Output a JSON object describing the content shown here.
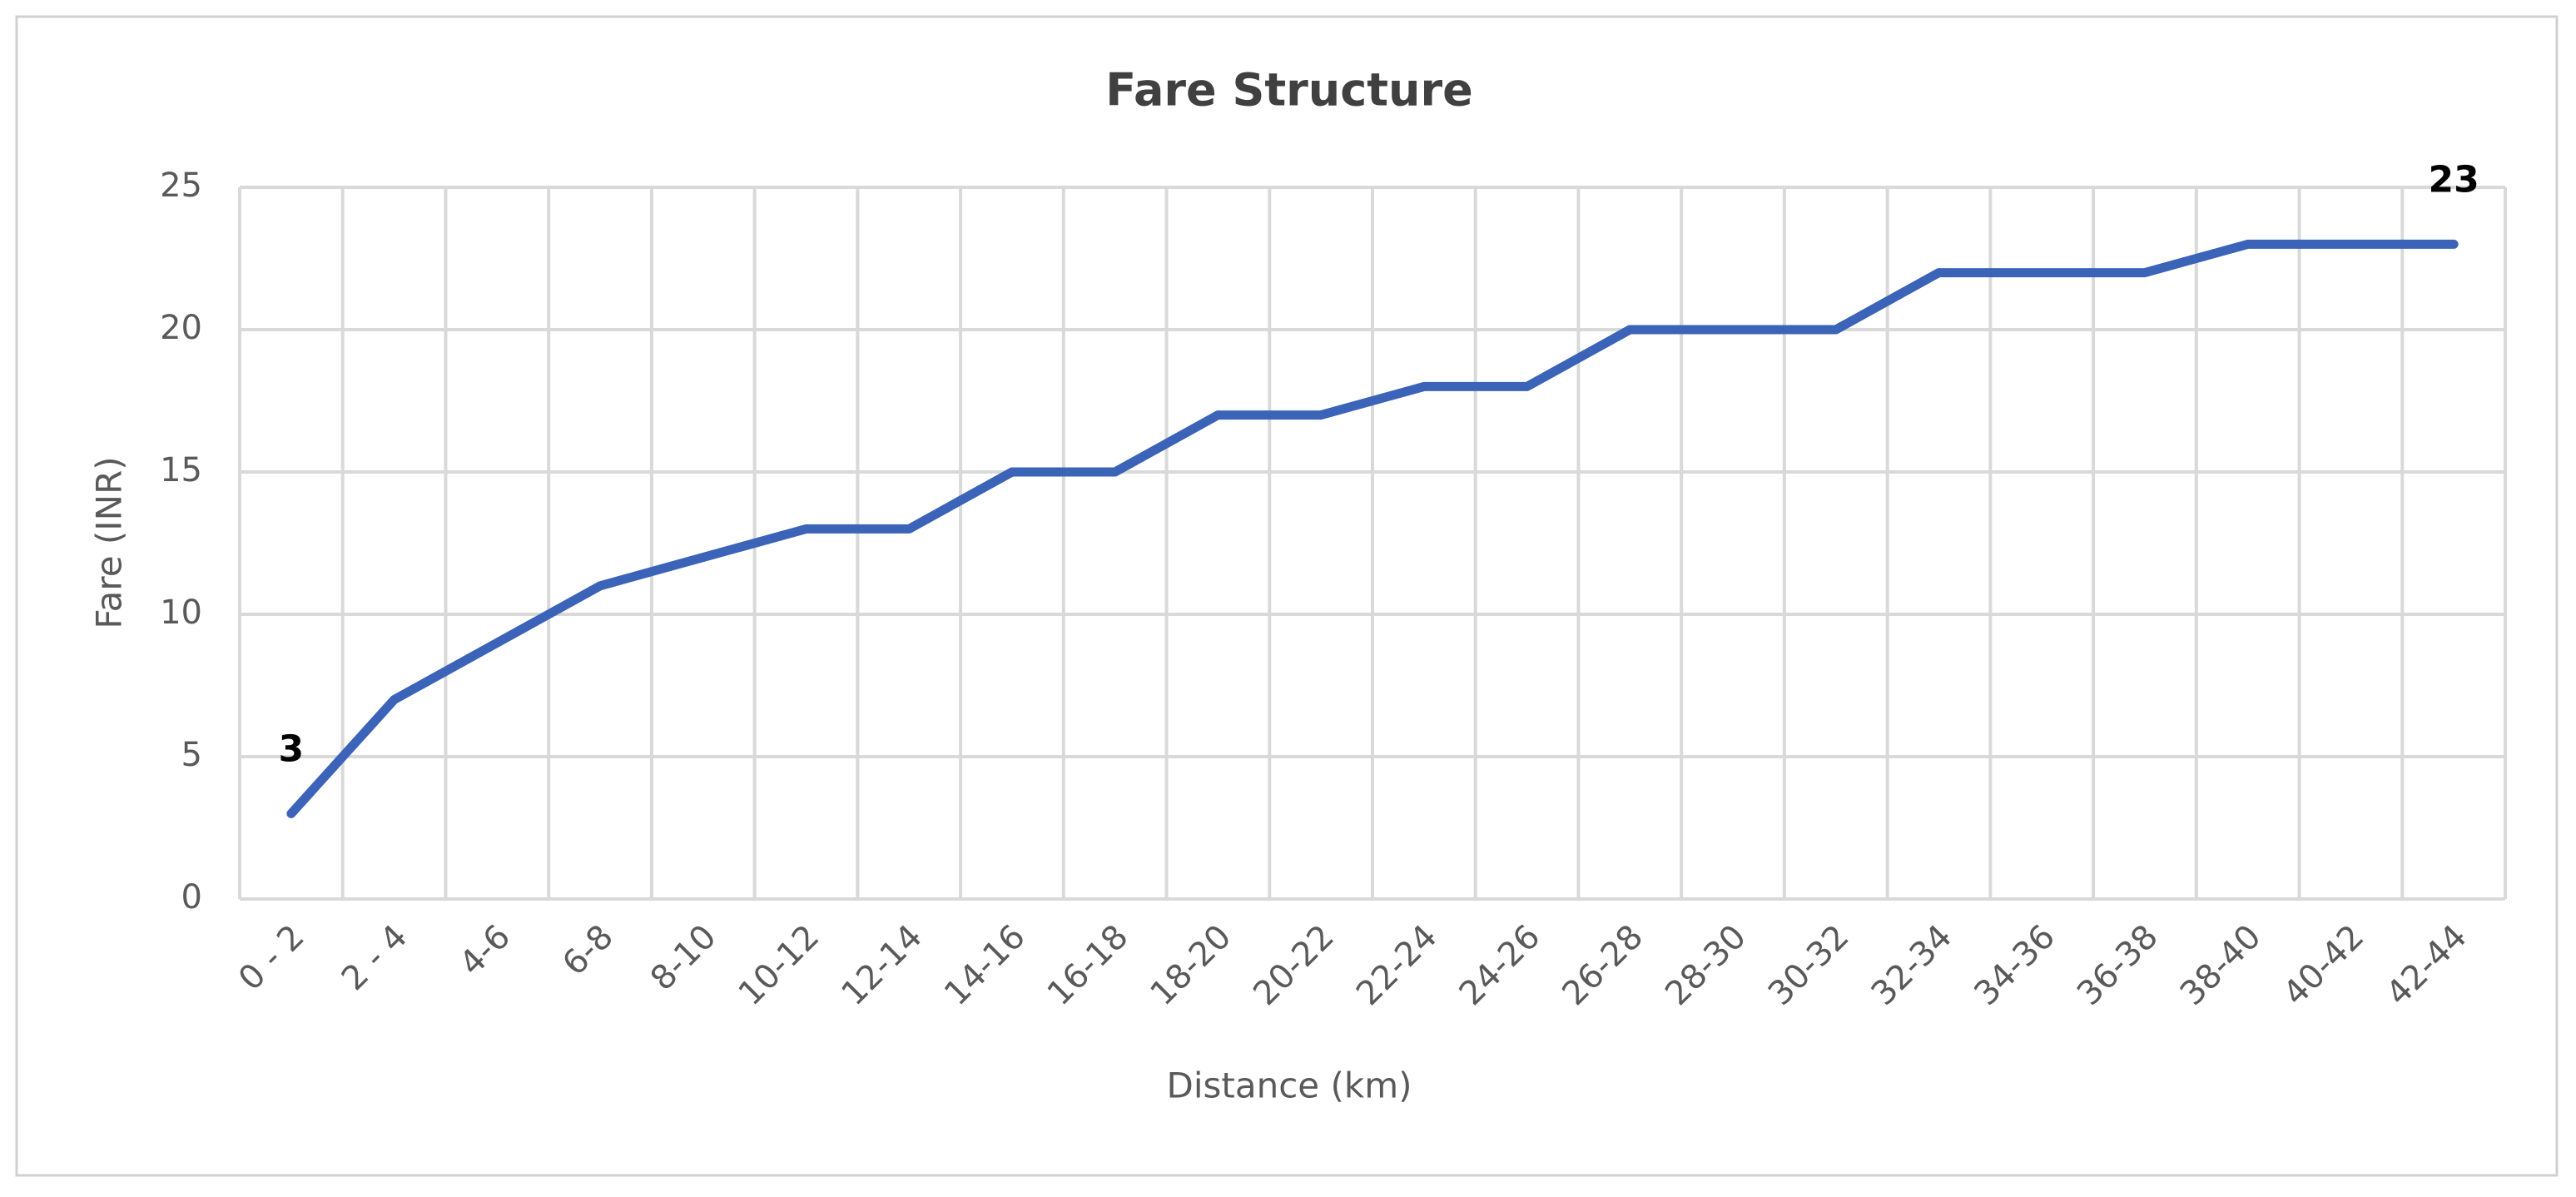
{
  "chart_data": {
    "type": "line",
    "title": "Fare Structure",
    "x_label": "Distance (km)",
    "y_label": "Fare (INR)",
    "categories": [
      "0 - 2",
      "2 - 4",
      "4-6",
      "6-8",
      "8-10",
      "10-12",
      "12-14",
      "14-16",
      "16-18",
      "18-20",
      "20-22",
      "22-24",
      "24-26",
      "26-28",
      "28-30",
      "30-32",
      "32-34",
      "34-36",
      "36-38",
      "38-40",
      "40-42",
      "42-44"
    ],
    "series": [
      {
        "name": "Fare",
        "color": "#3b64b9",
        "values": [
          3,
          7,
          9,
          11,
          12,
          13,
          13,
          15,
          15,
          17,
          17,
          18,
          18,
          20,
          20,
          20,
          22,
          22,
          22,
          23,
          23,
          23
        ],
        "value_labels": [
          "3",
          null,
          null,
          null,
          null,
          null,
          null,
          null,
          null,
          null,
          null,
          null,
          null,
          null,
          null,
          null,
          null,
          null,
          null,
          null,
          null,
          "23"
        ]
      }
    ],
    "ylim": [
      0,
      25
    ],
    "yticks": [
      0,
      5,
      10,
      15,
      20,
      25
    ],
    "grid": true
  }
}
